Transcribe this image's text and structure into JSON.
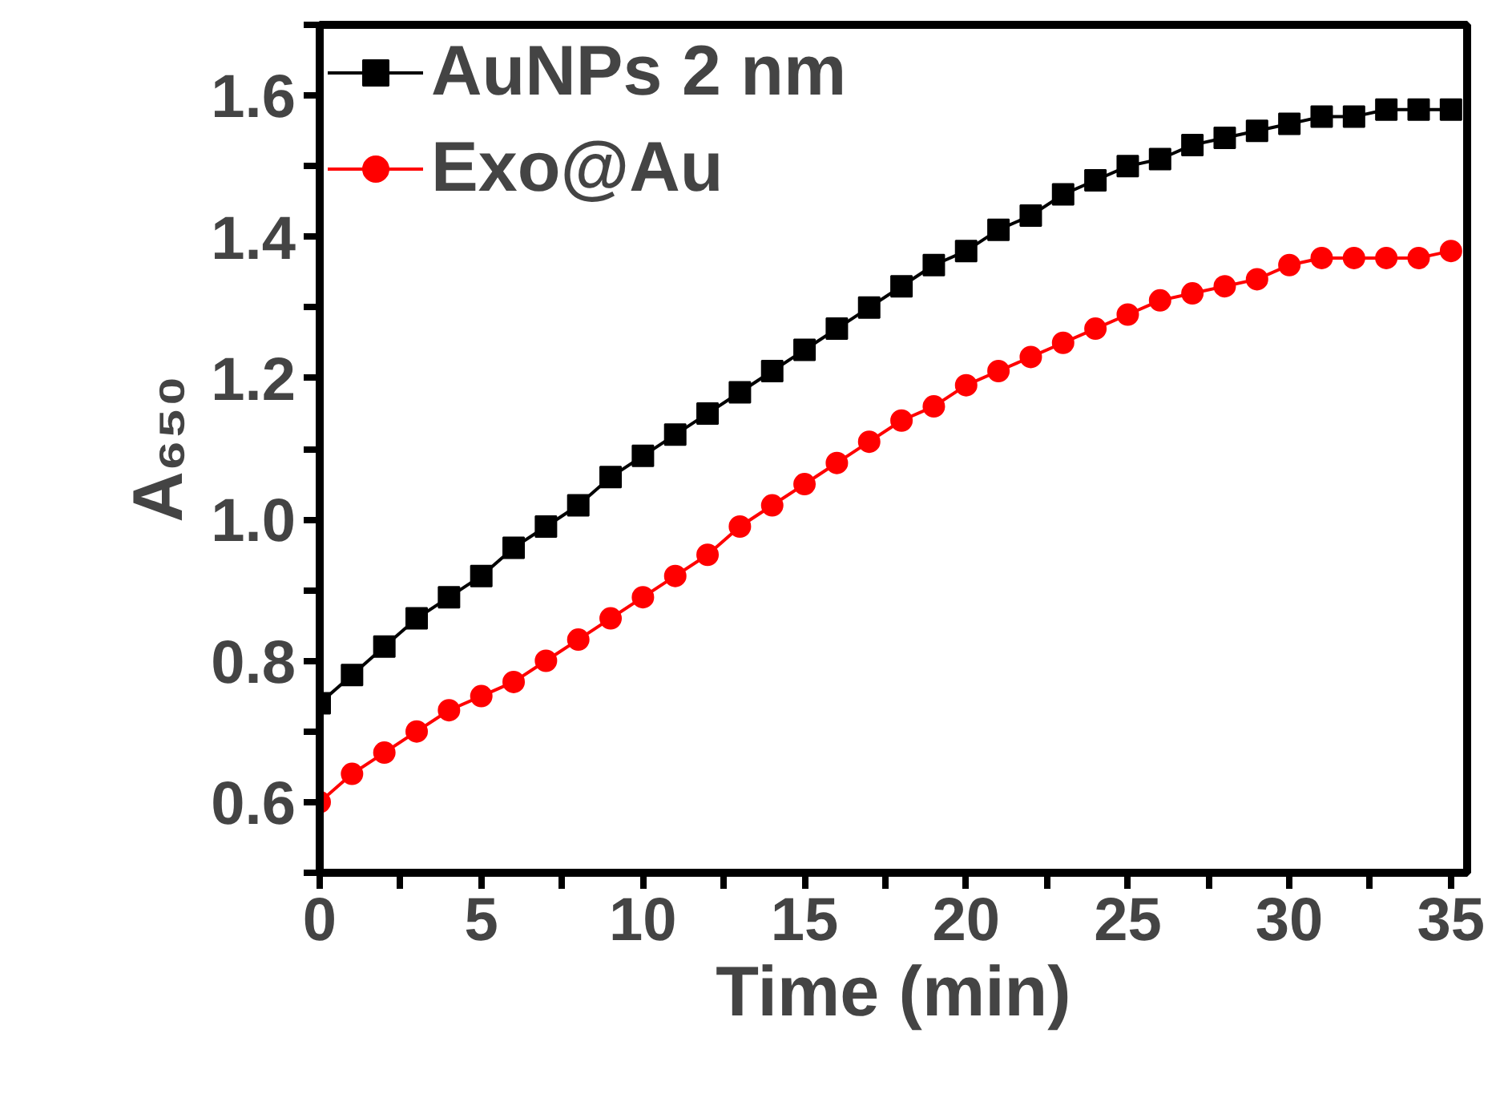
{
  "chart_data": {
    "type": "line",
    "xlabel": "Time (min)",
    "ylabel": "A₆₅₀",
    "x": [
      0,
      1,
      2,
      3,
      4,
      5,
      6,
      7,
      8,
      9,
      10,
      11,
      12,
      13,
      14,
      15,
      16,
      17,
      18,
      19,
      20,
      21,
      22,
      23,
      24,
      25,
      26,
      27,
      28,
      29,
      30,
      31,
      32,
      33,
      34,
      35
    ],
    "series": [
      {
        "name": "AuNPs 2 nm",
        "color": "#000000",
        "marker": "square",
        "values": [
          0.74,
          0.78,
          0.82,
          0.86,
          0.89,
          0.92,
          0.96,
          0.99,
          1.02,
          1.06,
          1.09,
          1.12,
          1.15,
          1.18,
          1.21,
          1.24,
          1.27,
          1.3,
          1.33,
          1.36,
          1.38,
          1.41,
          1.43,
          1.46,
          1.48,
          1.5,
          1.51,
          1.53,
          1.54,
          1.55,
          1.56,
          1.57,
          1.57,
          1.58,
          1.58,
          1.58
        ]
      },
      {
        "name": "Exo@Au",
        "color": "#ff0000",
        "marker": "circle",
        "values": [
          0.6,
          0.64,
          0.67,
          0.7,
          0.73,
          0.75,
          0.77,
          0.8,
          0.83,
          0.86,
          0.89,
          0.92,
          0.95,
          0.99,
          1.02,
          1.05,
          1.08,
          1.11,
          1.14,
          1.16,
          1.19,
          1.21,
          1.23,
          1.25,
          1.27,
          1.29,
          1.31,
          1.32,
          1.33,
          1.34,
          1.36,
          1.37,
          1.37,
          1.37,
          1.37,
          1.38
        ]
      }
    ],
    "xlim": [
      0,
      35.5
    ],
    "ylim": [
      0.5,
      1.7
    ],
    "xticks": [
      0,
      {
        "value": 2.5,
        "label": null
      },
      5,
      {
        "value": 7.5,
        "label": null
      },
      10,
      {
        "value": 12.5,
        "label": null
      },
      15,
      {
        "value": 17.5,
        "label": null
      },
      20,
      {
        "value": 22.5,
        "label": null
      },
      25,
      {
        "value": 27.5,
        "label": null
      },
      30,
      {
        "value": 32.5,
        "label": null
      },
      35
    ],
    "yticks": [
      {
        "value": 0.5,
        "label": null
      },
      {
        "value": 0.6,
        "label": "0.6"
      },
      {
        "value": 0.7,
        "label": null
      },
      {
        "value": 0.8,
        "label": "0.8"
      },
      {
        "value": 0.9,
        "label": null
      },
      {
        "value": 1.0,
        "label": "1.0"
      },
      {
        "value": 1.1,
        "label": null
      },
      {
        "value": 1.2,
        "label": "1.2"
      },
      {
        "value": 1.3,
        "label": null
      },
      {
        "value": 1.4,
        "label": "1.4"
      },
      {
        "value": 1.5,
        "label": null
      },
      {
        "value": 1.6,
        "label": "1.6"
      },
      {
        "value": 1.7,
        "label": null
      }
    ],
    "grid": false,
    "legend": "top left",
    "line_style": "solid"
  }
}
